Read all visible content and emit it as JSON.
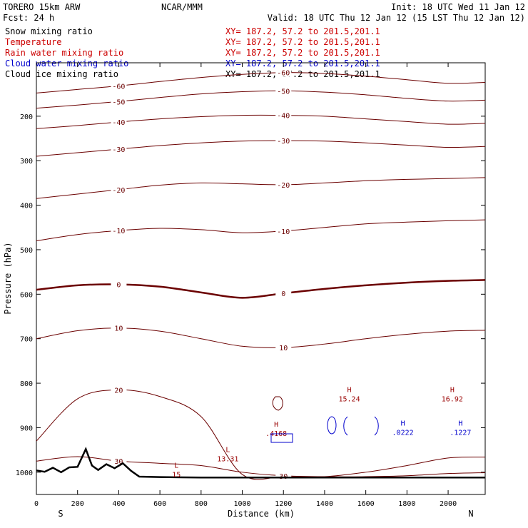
{
  "header": {
    "model": "TORERO  15km ARW",
    "center": "NCAR/MMM",
    "init": "Init: 18 UTC Wed 11 Jan 12",
    "fcst": "Fcst:    24 h",
    "valid": "Valid: 18 UTC Thu 12 Jan 12 (15 LST Thu 12 Jan 12)"
  },
  "legend": [
    {
      "name": "Snow mixing ratio",
      "range": "XY= 187.2, 57.2 to 201.5,201.1",
      "color": "#000000"
    },
    {
      "name": "Temperature",
      "range": "XY= 187.2, 57.2 to 201.5,201.1",
      "color": "#cc0000"
    },
    {
      "name": "Rain water mixing ratio",
      "range": "XY= 187.2, 57.2 to 201.5,201.1",
      "color": "#cc0000"
    },
    {
      "name": "Cloud water mixing ratio",
      "range": "XY= 187.2, 57.2 to 201.5,201.1",
      "color": "#0000cc"
    },
    {
      "name": "Cloud ice mixing ratio",
      "range": "XY= 187.2, 57.2 to 201.5,201.1",
      "color": "#000000"
    }
  ],
  "chart_data": {
    "type": "line",
    "subtype": "cross-section contour plot",
    "xlabel": "Distance (km)",
    "ylabel": "Pressure (hPa)",
    "xlim": [
      0,
      2180
    ],
    "ylim": [
      1050,
      80
    ],
    "x_ticks": [
      0,
      200,
      400,
      600,
      800,
      1000,
      1200,
      1400,
      1600,
      1800,
      2000
    ],
    "y_ticks": [
      200,
      300,
      400,
      500,
      600,
      700,
      800,
      900,
      1000
    ],
    "x_end_labels": {
      "left": "S",
      "right": "N"
    },
    "temperature_isotherms_C": [
      {
        "value": -60,
        "p": [
          148,
          140,
          132,
          122,
          113,
          106,
          102,
          104,
          110,
          118,
          126
        ]
      },
      {
        "value": -50,
        "p": [
          182,
          175,
          167,
          158,
          150,
          145,
          143,
          146,
          152,
          160,
          166
        ]
      },
      {
        "value": -40,
        "p": [
          228,
          221,
          213,
          206,
          201,
          198,
          198,
          200,
          206,
          212,
          218
        ]
      },
      {
        "value": -30,
        "p": [
          290,
          282,
          274,
          266,
          260,
          256,
          255,
          256,
          260,
          265,
          270
        ]
      },
      {
        "value": -20,
        "p": [
          385,
          375,
          365,
          355,
          350,
          352,
          354,
          350,
          345,
          342,
          340
        ]
      },
      {
        "value": -10,
        "p": [
          480,
          466,
          457,
          452,
          455,
          462,
          458,
          450,
          442,
          438,
          435
        ]
      },
      {
        "value": 0,
        "p": [
          590,
          580,
          578,
          583,
          596,
          608,
          598,
          588,
          580,
          574,
          570
        ]
      },
      {
        "value": 10,
        "p": [
          700,
          682,
          676,
          683,
          700,
          717,
          720,
          712,
          700,
          690,
          683
        ]
      },
      {
        "value": 20,
        "p": [
          930,
          835,
          815,
          830,
          875,
          1005,
          1010,
          1010,
          1000,
          985,
          968
        ]
      },
      {
        "value": 30,
        "p": [
          975,
          965,
          975,
          980,
          985,
          1000,
          1008,
          1010,
          1010,
          1008,
          1003
        ]
      }
    ],
    "contour_x_km": [
      0,
      200,
      400,
      600,
      800,
      1000,
      1200,
      1400,
      1600,
      1800,
      2000
    ],
    "terrain": {
      "x_km": [
        0,
        40,
        80,
        120,
        160,
        200,
        240,
        270,
        300,
        340,
        380,
        420,
        460,
        500,
        600,
        800,
        1000,
        1200,
        1400,
        1600,
        1800,
        2000,
        2180
      ],
      "p_hPa": [
        996,
        999,
        990,
        1000,
        989,
        988,
        948,
        985,
        995,
        982,
        991,
        980,
        997,
        1010,
        1011,
        1012,
        1012,
        1012,
        1012,
        1012,
        1012,
        1012,
        1012
      ]
    },
    "markers": [
      {
        "label": "H",
        "value": "15.24",
        "x_km": 1520,
        "p_hPa": 820,
        "color": "#990000"
      },
      {
        "label": "H",
        "value": "16.92",
        "x_km": 2020,
        "p_hPa": 820,
        "color": "#990000"
      },
      {
        "label": "L",
        "value": "13.31",
        "x_km": 930,
        "p_hPa": 955,
        "color": "#990000"
      },
      {
        "label": "L",
        "value": "15",
        "x_km": 680,
        "p_hPa": 990,
        "color": "#990000"
      },
      {
        "label": "H",
        "value": ".4168",
        "x_km": 1165,
        "p_hPa": 898,
        "color": "#990000"
      },
      {
        "label": "H",
        "value": ".0222",
        "x_km": 1780,
        "p_hPa": 895,
        "color": "#0000cc"
      },
      {
        "label": "H",
        "value": ".1227",
        "x_km": 2060,
        "p_hPa": 895,
        "color": "#0000cc"
      }
    ]
  }
}
